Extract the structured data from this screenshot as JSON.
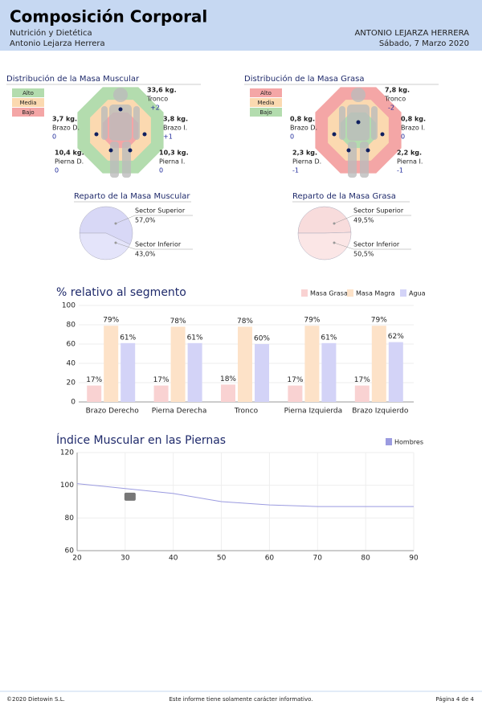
{
  "header": {
    "title": "Composición Corporal",
    "subtitle": "Nutrición y Dietética",
    "author": "Antonio Lejarza Herrera",
    "patient": "ANTONIO LEJARZA HERRERA",
    "date": "Sábado, 7 Marzo 2020"
  },
  "distributions": [
    {
      "title": "Distribución de la Masa Muscular",
      "legend": [
        {
          "label": "Alto",
          "color": "#b3dcae"
        },
        {
          "label": "Media",
          "color": "#fbd9b0"
        },
        {
          "label": "Bajo",
          "color": "#f4a6a6"
        }
      ],
      "rings": [
        "#b3dcae",
        "#fbd9b0",
        "#f4a6a6"
      ],
      "segments": [
        {
          "mass": "33,6 kg.",
          "name": "Tronco",
          "change": "+2"
        },
        {
          "mass": "3,8 kg.",
          "name": "Brazo I.",
          "change": "+1"
        },
        {
          "mass": "10,3 kg.",
          "name": "Pierna I.",
          "change": "0"
        },
        {
          "mass": "3,7 kg.",
          "name": "Brazo D.",
          "change": "0"
        },
        {
          "mass": "10,4 kg.",
          "name": "Pierna D.",
          "change": "0"
        }
      ]
    },
    {
      "title": "Distribución de la Masa Grasa",
      "legend": [
        {
          "label": "Alto",
          "color": "#f4a6a6"
        },
        {
          "label": "Media",
          "color": "#fbd9b0"
        },
        {
          "label": "Bajo",
          "color": "#b3dcae"
        }
      ],
      "rings": [
        "#f4a6a6",
        "#fbd9b0",
        "#b3dcae"
      ],
      "segments": [
        {
          "mass": "7,8 kg.",
          "name": "Tronco",
          "change": "-2"
        },
        {
          "mass": "0,8 kg.",
          "name": "Brazo I.",
          "change": "0"
        },
        {
          "mass": "2,2 kg.",
          "name": "Pierna I.",
          "change": "-1"
        },
        {
          "mass": "0,8 kg.",
          "name": "Brazo D.",
          "change": "0"
        },
        {
          "mass": "2,3 kg.",
          "name": "Pierna D.",
          "change": "-1"
        }
      ]
    }
  ],
  "chart_data": [
    {
      "type": "pie",
      "title": "Reparto de la Masa Muscular",
      "categories": [
        "Sector Superior",
        "Sector Inferior"
      ],
      "values": [
        57.0,
        43.0
      ],
      "value_labels": [
        "57,0%",
        "43,0%"
      ],
      "colors": [
        "#d8d8f6",
        "#e4e4fa"
      ]
    },
    {
      "type": "pie",
      "title": "Reparto de la Masa Grasa",
      "categories": [
        "Sector Superior",
        "Sector Inferior"
      ],
      "values": [
        49.5,
        50.5
      ],
      "value_labels": [
        "49,5%",
        "50,5%"
      ],
      "colors": [
        "#f8dcdc",
        "#fbe6e6"
      ]
    },
    {
      "type": "bar",
      "title": "% relativo al segmento",
      "categories": [
        "Brazo Derecho",
        "Pierna Derecha",
        "Tronco",
        "Pierna Izquierda",
        "Brazo Izquierdo"
      ],
      "series": [
        {
          "name": "Masa Grasa",
          "color": "#f9d2d2",
          "values": [
            17,
            17,
            18,
            17,
            17
          ],
          "value_labels": [
            "17%",
            "17%",
            "18%",
            "17%",
            "17%"
          ]
        },
        {
          "name": "Masa Magra",
          "color": "#fde2c8",
          "values": [
            79,
            78,
            78,
            79,
            79
          ],
          "value_labels": [
            "79%",
            "78%",
            "78%",
            "79%",
            "79%"
          ]
        },
        {
          "name": "Agua",
          "color": "#d3d3f7",
          "values": [
            61,
            61,
            60,
            61,
            62
          ],
          "value_labels": [
            "61%",
            "61%",
            "60%",
            "61%",
            "62%"
          ]
        }
      ],
      "ylim": [
        0,
        100
      ],
      "yticks": [
        0,
        20,
        40,
        60,
        80,
        100
      ],
      "grid": true
    },
    {
      "type": "line",
      "title": "Índice Muscular en las Piernas",
      "x": [
        20,
        30,
        40,
        50,
        60,
        70,
        80,
        90
      ],
      "series": [
        {
          "name": "Hombres",
          "color": "#9b9be0",
          "values": [
            101,
            98,
            95,
            90,
            88,
            87,
            87,
            87
          ]
        }
      ],
      "marker": {
        "x": 31,
        "y": 93
      },
      "xlim": [
        20,
        90
      ],
      "xticks": [
        20,
        30,
        40,
        50,
        60,
        70,
        80,
        90
      ],
      "ylim": [
        60,
        120
      ],
      "yticks": [
        60,
        80,
        100,
        120
      ],
      "grid": true
    }
  ],
  "footer": {
    "copyright": "©2020 Dietowin S.L.",
    "note": "Este informe tiene solamente carácter informativo.",
    "page": "Página 4 de 4"
  }
}
